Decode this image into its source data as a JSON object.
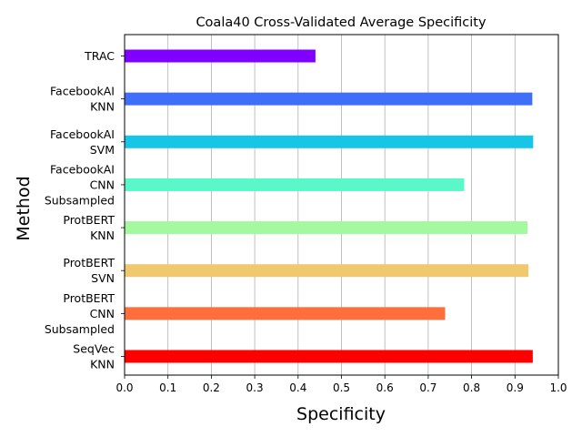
{
  "chart_data": {
    "type": "bar",
    "orientation": "horizontal",
    "title": "Coala40 Cross-Validated Average Specificity",
    "xlabel": "Specificity",
    "ylabel": "Method",
    "xlim": [
      0,
      1.0
    ],
    "xticks": [
      "0.0",
      "0.1",
      "0.2",
      "0.3",
      "0.4",
      "0.5",
      "0.6",
      "0.7",
      "0.8",
      "0.9",
      "1.0"
    ],
    "grid": "vertical",
    "categories": [
      [
        "TRAC"
      ],
      [
        "FacebookAI",
        "KNN"
      ],
      [
        "FacebookAI",
        "SVM"
      ],
      [
        "FacebookAI",
        "CNN",
        "Subsampled"
      ],
      [
        "ProtBERT",
        "KNN"
      ],
      [
        "ProtBERT",
        "SVN"
      ],
      [
        "ProtBERT",
        "CNN",
        "Subsampled"
      ],
      [
        "SeqVec",
        "KNN"
      ]
    ],
    "values": [
      0.44,
      0.94,
      0.942,
      0.783,
      0.929,
      0.931,
      0.739,
      0.941
    ],
    "colors": [
      "#8000ff",
      "#3f6ef8",
      "#17c5e6",
      "#5af8c8",
      "#a4f89f",
      "#f0c86f",
      "#ff6e3b",
      "#ff0000"
    ]
  }
}
